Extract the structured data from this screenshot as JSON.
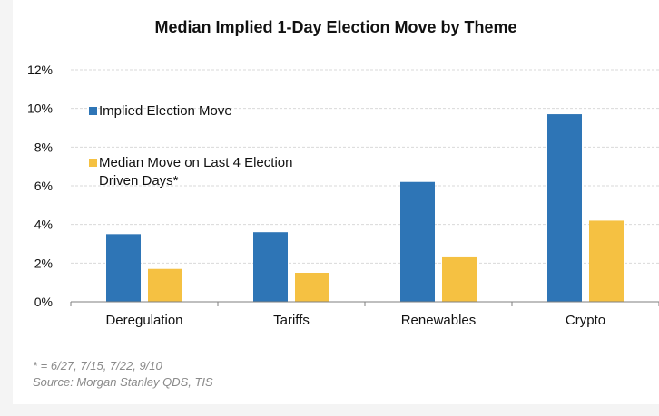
{
  "chart_data": {
    "type": "bar",
    "title": "Median Implied 1-Day Election Move by Theme",
    "categories": [
      "Deregulation",
      "Tariffs",
      "Renewables",
      "Crypto"
    ],
    "series": [
      {
        "name": "Implied Election Move",
        "color": "#2e75b6",
        "values": [
          3.5,
          3.6,
          6.2,
          9.7
        ]
      },
      {
        "name": "Median Move on Last 4 Election Driven Days*",
        "name_lines": [
          "Median Move on Last 4 Election",
          "Driven Days*"
        ],
        "color": "#f5c142",
        "values": [
          1.7,
          1.5,
          2.3,
          4.2
        ]
      }
    ],
    "ylim": [
      0,
      12
    ],
    "yticks": [
      0,
      2,
      4,
      6,
      8,
      10,
      12
    ],
    "ytick_format": "%",
    "grid": true,
    "legend_position": "upper-left"
  },
  "footnotes": {
    "dates": "* = 6/27, 7/15, 7/22, 9/10",
    "source": "Source: Morgan Stanley QDS, TIS"
  }
}
